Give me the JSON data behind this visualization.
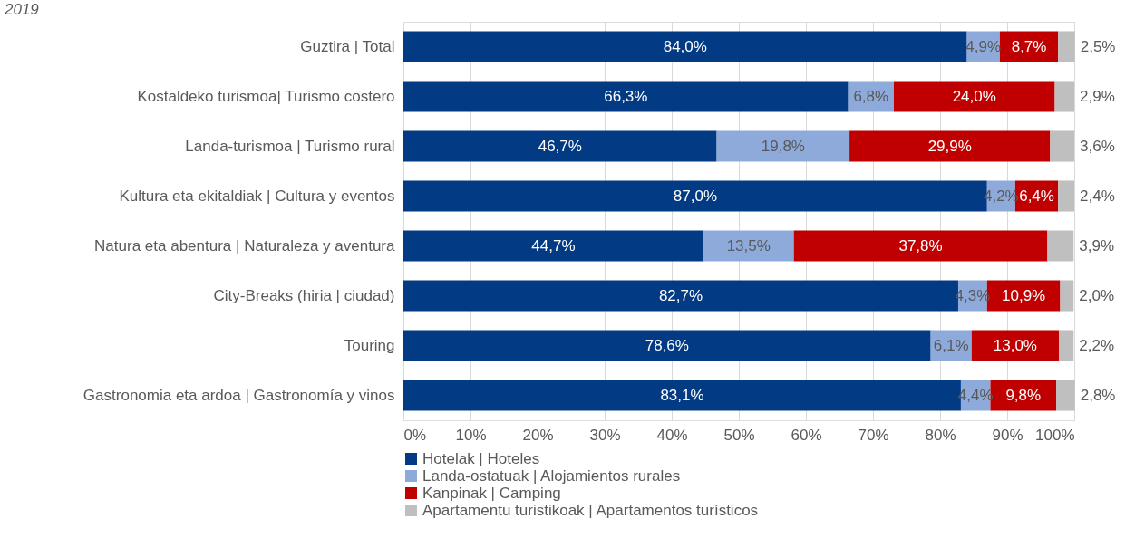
{
  "chart_data": {
    "type": "bar",
    "orientation": "horizontal",
    "stacked": true,
    "title": "2019",
    "categories": [
      "Guztira | Total",
      "Kostaldeko turismoa| Turismo costero",
      "Landa-turismoa | Turismo rural",
      "Kultura eta ekitaldiak | Cultura y eventos",
      "Natura eta abentura | Naturaleza y aventura",
      "City-Breaks (hiria | ciudad)",
      "Touring",
      "Gastronomia eta ardoa | Gastronomía y vinos"
    ],
    "series": [
      {
        "name": "Hotelak | Hoteles",
        "color": "#033a84",
        "values": [
          84.0,
          66.3,
          46.7,
          87.0,
          44.7,
          82.7,
          78.6,
          83.1
        ],
        "value_labels": [
          "84,0%",
          "66,3%",
          "46,7%",
          "87,0%",
          "44,7%",
          "82,7%",
          "78,6%",
          "83,1%"
        ]
      },
      {
        "name": "Landa-ostatuak | Alojamientos rurales",
        "color": "#8eaadb",
        "values": [
          4.9,
          6.8,
          19.8,
          4.2,
          13.5,
          4.3,
          6.1,
          4.4
        ],
        "value_labels": [
          "4,9%",
          "6,8%",
          "19,8%",
          "4,2%",
          "13,5%",
          "4,3%",
          "6,1%",
          "4,4%"
        ]
      },
      {
        "name": "Kanpinak | Camping",
        "color": "#c00000",
        "values": [
          8.7,
          24.0,
          29.9,
          6.4,
          37.8,
          10.9,
          13.0,
          9.8
        ],
        "value_labels": [
          "8,7%",
          "24,0%",
          "29,9%",
          "6,4%",
          "37,8%",
          "10,9%",
          "13,0%",
          "9,8%"
        ]
      },
      {
        "name": "Apartamentu turistikoak | Apartamentos turísticos",
        "color": "#bfbfbf",
        "values": [
          2.5,
          2.9,
          3.6,
          2.4,
          3.9,
          2.0,
          2.2,
          2.8
        ],
        "value_labels": [
          "2,5%",
          "2,9%",
          "3,6%",
          "2,4%",
          "3,9%",
          "2,0%",
          "2,2%",
          "2,8%"
        ]
      }
    ],
    "xlim": [
      0,
      100
    ],
    "xticks": [
      {
        "value": 0,
        "label": "0%"
      },
      {
        "value": 10,
        "label": "10%"
      },
      {
        "value": 20,
        "label": "20%"
      },
      {
        "value": 30,
        "label": "30%"
      },
      {
        "value": 40,
        "label": "40%"
      },
      {
        "value": 50,
        "label": "50%"
      },
      {
        "value": 60,
        "label": "60%"
      },
      {
        "value": 70,
        "label": "70%"
      },
      {
        "value": 80,
        "label": "80%"
      },
      {
        "value": 90,
        "label": "90%"
      },
      {
        "value": 100,
        "label": "100%"
      }
    ],
    "grid": "x",
    "legend": "bottom"
  }
}
